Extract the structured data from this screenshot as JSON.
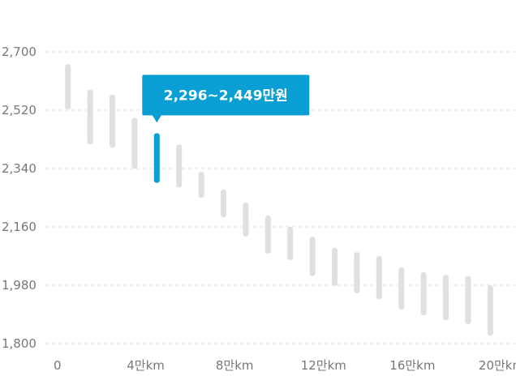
{
  "chart_data": {
    "type": "range-bar",
    "title": "",
    "xlabel": "",
    "ylabel": "",
    "ylim": [
      1800,
      2700
    ],
    "y_ticks": [
      "1,800",
      "1,980",
      "2,160",
      "2,340",
      "2,520",
      "2,700"
    ],
    "y_tick_values": [
      1800,
      1980,
      2160,
      2340,
      2520,
      2700
    ],
    "xlim": [
      0,
      21
    ],
    "x_ticks": [
      "0",
      "4만km",
      "8만km",
      "12만km",
      "16만km",
      "20만km"
    ],
    "x_tick_values": [
      0,
      4,
      8,
      12,
      16,
      20
    ],
    "grid": true,
    "colors": {
      "bar": "#e0e0e0",
      "highlight": "#0a9fd4",
      "grid": "#e3e3e3",
      "tick": "#777777"
    },
    "highlight_index": 4,
    "tooltip": "2,296~2,449만원",
    "series": [
      {
        "x": 0.5,
        "low": 2522,
        "high": 2662
      },
      {
        "x": 1.5,
        "low": 2415,
        "high": 2583
      },
      {
        "x": 2.5,
        "low": 2405,
        "high": 2568
      },
      {
        "x": 3.5,
        "low": 2340,
        "high": 2497
      },
      {
        "x": 4.5,
        "low": 2296,
        "high": 2449
      },
      {
        "x": 5.5,
        "low": 2282,
        "high": 2414
      },
      {
        "x": 6.5,
        "low": 2250,
        "high": 2330
      },
      {
        "x": 7.5,
        "low": 2190,
        "high": 2275
      },
      {
        "x": 8.5,
        "low": 2130,
        "high": 2235
      },
      {
        "x": 9.5,
        "low": 2078,
        "high": 2195
      },
      {
        "x": 10.5,
        "low": 2058,
        "high": 2160
      },
      {
        "x": 11.5,
        "low": 2008,
        "high": 2130
      },
      {
        "x": 12.5,
        "low": 1978,
        "high": 2095
      },
      {
        "x": 13.5,
        "low": 1955,
        "high": 2082
      },
      {
        "x": 14.5,
        "low": 1937,
        "high": 2070
      },
      {
        "x": 15.5,
        "low": 1905,
        "high": 2035
      },
      {
        "x": 16.5,
        "low": 1887,
        "high": 2020
      },
      {
        "x": 17.5,
        "low": 1872,
        "high": 2012
      },
      {
        "x": 18.5,
        "low": 1860,
        "high": 2008
      },
      {
        "x": 19.5,
        "low": 1825,
        "high": 1980
      }
    ]
  }
}
